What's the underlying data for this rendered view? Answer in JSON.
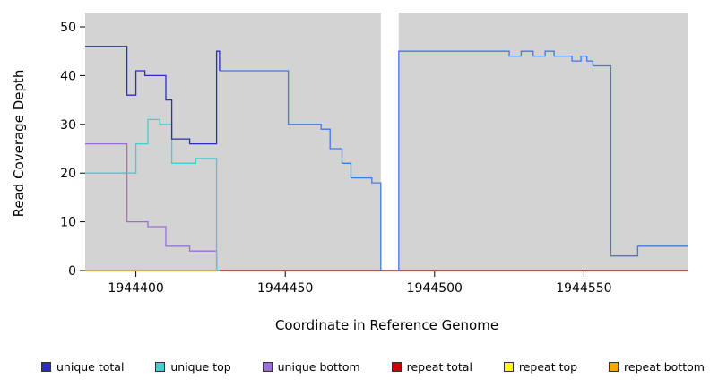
{
  "chart_data": {
    "type": "line",
    "subtype": "step",
    "title": "",
    "xlabel": "Coordinate in Reference Genome",
    "ylabel": "Read Coverage Depth",
    "xlim": [
      1944383,
      1944585
    ],
    "ylim": [
      0,
      50
    ],
    "xticks": [
      1944400,
      1944450,
      1944500,
      1944550
    ],
    "yticks": [
      0,
      10,
      20,
      30,
      40,
      50
    ],
    "plot_bg": "#D3D3D3",
    "page_bg": "#FFFFFF",
    "grid": "off",
    "gap_region": {
      "x0": 1944482,
      "x1": 1944488
    },
    "series": [
      {
        "name": "repeat top",
        "color": "#FFFF00",
        "segments": [
          {
            "steps": [
              [
                1944383,
                0
              ]
            ],
            "xend": 1944585
          }
        ]
      },
      {
        "name": "unique bottom",
        "color": "#9B6FD6",
        "segments": [
          {
            "steps": [
              [
                1944383,
                26
              ],
              [
                1944397,
                10
              ],
              [
                1944404,
                9
              ],
              [
                1944410,
                5
              ],
              [
                1944418,
                4
              ],
              [
                1944427,
                0
              ]
            ],
            "xend": 1944585
          }
        ]
      },
      {
        "name": "repeat total",
        "color": "#CC0000",
        "segments": [
          {
            "steps": [
              [
                1944383,
                0
              ]
            ],
            "xend": 1944585
          }
        ]
      },
      {
        "name": "repeat bottom",
        "color": "#FFA500",
        "segments": [
          {
            "steps": [
              [
                1944383,
                0
              ]
            ],
            "xend": 1944428
          }
        ]
      },
      {
        "name": "unique top",
        "color": "#3FCFCF",
        "segments": [
          {
            "steps": [
              [
                1944383,
                20
              ],
              [
                1944400,
                26
              ],
              [
                1944404,
                31
              ],
              [
                1944408,
                30
              ],
              [
                1944412,
                22
              ],
              [
                1944420,
                23
              ],
              [
                1944427,
                0
              ]
            ],
            "xend": 1944428
          }
        ]
      },
      {
        "name": "unique total",
        "color": "#2B2BCB",
        "segments": [
          {
            "steps": [
              [
                1944383,
                46
              ],
              [
                1944397,
                36
              ],
              [
                1944400,
                41
              ],
              [
                1944403,
                40
              ],
              [
                1944410,
                35
              ],
              [
                1944412,
                27
              ],
              [
                1944418,
                26
              ],
              [
                1944427,
                45
              ],
              [
                1944428,
                41
              ]
            ],
            "xend": 1944428
          }
        ]
      },
      {
        "name": "total",
        "color": "#3D7BE5",
        "segments": [
          {
            "steps": [
              [
                1944428,
                41
              ],
              [
                1944451,
                30
              ],
              [
                1944462,
                29
              ],
              [
                1944465,
                25
              ],
              [
                1944469,
                22
              ],
              [
                1944472,
                19
              ],
              [
                1944479,
                18
              ],
              [
                1944482,
                0
              ]
            ],
            "xend": 1944482
          },
          {
            "steps": [
              [
                1944488,
                0
              ],
              [
                1944488,
                45
              ],
              [
                1944525,
                44
              ],
              [
                1944529,
                45
              ],
              [
                1944533,
                44
              ],
              [
                1944537,
                45
              ],
              [
                1944540,
                44
              ],
              [
                1944546,
                43
              ],
              [
                1944549,
                44
              ],
              [
                1944551,
                43
              ],
              [
                1944553,
                42
              ],
              [
                1944559,
                3
              ],
              [
                1944568,
                5
              ]
            ],
            "xend": 1944585
          }
        ]
      }
    ],
    "legend": {
      "position": "bottom",
      "items": [
        {
          "label": "unique total",
          "color": "#2B2BCB"
        },
        {
          "label": "unique top",
          "color": "#3FCFCF"
        },
        {
          "label": "unique bottom",
          "color": "#9B6FD6"
        },
        {
          "label": "repeat total",
          "color": "#CC0000"
        },
        {
          "label": "repeat top",
          "color": "#FFFF00"
        },
        {
          "label": "repeat bottom",
          "color": "#FFA500"
        }
      ]
    }
  }
}
